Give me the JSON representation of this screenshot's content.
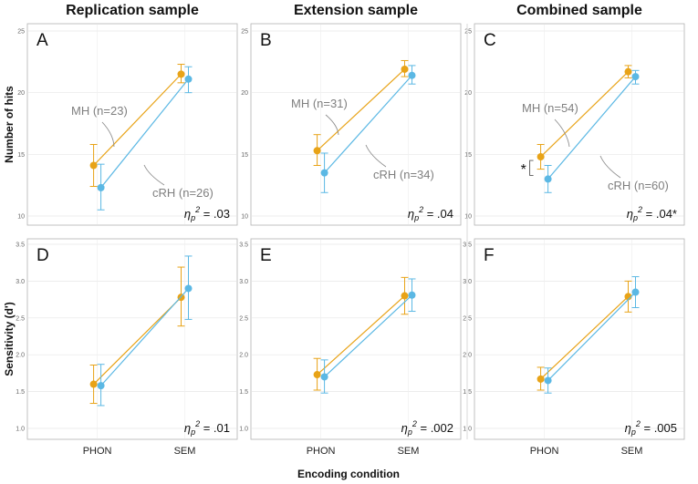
{
  "figure": {
    "column_titles": [
      "Replication sample",
      "Extension sample",
      "Combined sample"
    ],
    "row_ylabels": [
      "Number of hits",
      "Sensitivity (d')"
    ],
    "xlabel": "Encoding condition",
    "colors": {
      "MH": "#E8A317",
      "cRH": "#5BB8E4",
      "grid": "#e6e6e6",
      "frame": "#b3b3b3"
    }
  },
  "chart_data": [
    {
      "type": "line",
      "panel": "A",
      "row": 0,
      "col": 0,
      "categories": [
        "PHON",
        "SEM"
      ],
      "ylim": [
        10,
        25
      ],
      "yticks": [
        10,
        15,
        20,
        25
      ],
      "series": [
        {
          "name": "MH",
          "label": "MH (n=23)",
          "values": [
            14.1,
            21.5
          ],
          "ci": [
            [
              12.4,
              15.8
            ],
            [
              20.8,
              22.3
            ]
          ]
        },
        {
          "name": "cRH",
          "label": "cRH (n=26)",
          "values": [
            12.3,
            21.1
          ],
          "ci": [
            [
              10.5,
              14.2
            ],
            [
              20.0,
              22.1
            ]
          ]
        }
      ],
      "eta_prefix": "η",
      "eta_sub": "p",
      "eta_sup": "2",
      "eta_value": " = .03"
    },
    {
      "type": "line",
      "panel": "B",
      "row": 0,
      "col": 1,
      "categories": [
        "PHON",
        "SEM"
      ],
      "ylim": [
        10,
        25
      ],
      "yticks": [
        10,
        15,
        20,
        25
      ],
      "series": [
        {
          "name": "MH",
          "label": "MH (n=31)",
          "values": [
            15.3,
            21.9
          ],
          "ci": [
            [
              14.1,
              16.6
            ],
            [
              21.3,
              22.6
            ]
          ]
        },
        {
          "name": "cRH",
          "label": "cRH (n=34)",
          "values": [
            13.5,
            21.4
          ],
          "ci": [
            [
              11.9,
              15.1
            ],
            [
              20.7,
              22.2
            ]
          ]
        }
      ],
      "eta_prefix": "η",
      "eta_sub": "p",
      "eta_sup": "2",
      "eta_value": " = .04"
    },
    {
      "type": "line",
      "panel": "C",
      "row": 0,
      "col": 2,
      "categories": [
        "PHON",
        "SEM"
      ],
      "ylim": [
        10,
        25
      ],
      "yticks": [
        10,
        15,
        20,
        25
      ],
      "series": [
        {
          "name": "MH",
          "label": "MH (n=54)",
          "values": [
            14.8,
            21.7
          ],
          "ci": [
            [
              13.8,
              15.8
            ],
            [
              21.2,
              22.2
            ]
          ]
        },
        {
          "name": "cRH",
          "label": "cRH (n=60)",
          "values": [
            13.0,
            21.3
          ],
          "ci": [
            [
              11.9,
              14.1
            ],
            [
              20.7,
              21.8
            ]
          ]
        }
      ],
      "eta_prefix": "η",
      "eta_sub": "p",
      "eta_sup": "2",
      "eta_value": " = .04*",
      "annotation": "*"
    },
    {
      "type": "line",
      "panel": "D",
      "row": 1,
      "col": 0,
      "categories": [
        "PHON",
        "SEM"
      ],
      "ylim": [
        1.0,
        3.5
      ],
      "yticks": [
        "1.0",
        "1.5",
        "2.0",
        "2.5",
        "3.0",
        "3.5"
      ],
      "series": [
        {
          "name": "MH",
          "values": [
            1.6,
            2.78
          ],
          "ci": [
            [
              1.34,
              1.86
            ],
            [
              2.39,
              3.19
            ]
          ]
        },
        {
          "name": "cRH",
          "values": [
            1.58,
            2.9
          ],
          "ci": [
            [
              1.31,
              1.87
            ],
            [
              2.48,
              3.34
            ]
          ]
        }
      ],
      "eta_prefix": "η",
      "eta_sub": "p",
      "eta_sup": "2",
      "eta_value": " = .01"
    },
    {
      "type": "line",
      "panel": "E",
      "row": 1,
      "col": 1,
      "categories": [
        "PHON",
        "SEM"
      ],
      "ylim": [
        1.0,
        3.5
      ],
      "yticks": [
        "1.0",
        "1.5",
        "2.0",
        "2.5",
        "3.0",
        "3.5"
      ],
      "series": [
        {
          "name": "MH",
          "values": [
            1.73,
            2.8
          ],
          "ci": [
            [
              1.52,
              1.95
            ],
            [
              2.55,
              3.05
            ]
          ]
        },
        {
          "name": "cRH",
          "values": [
            1.7,
            2.81
          ],
          "ci": [
            [
              1.48,
              1.93
            ],
            [
              2.59,
              3.03
            ]
          ]
        }
      ],
      "eta_prefix": "η",
      "eta_sub": "p",
      "eta_sup": "2",
      "eta_value": " = .002"
    },
    {
      "type": "line",
      "panel": "F",
      "row": 1,
      "col": 2,
      "categories": [
        "PHON",
        "SEM"
      ],
      "ylim": [
        1.0,
        3.5
      ],
      "yticks": [
        "1.0",
        "1.5",
        "2.0",
        "2.5",
        "3.0",
        "3.5"
      ],
      "series": [
        {
          "name": "MH",
          "values": [
            1.67,
            2.79
          ],
          "ci": [
            [
              1.52,
              1.83
            ],
            [
              2.58,
              3.0
            ]
          ]
        },
        {
          "name": "cRH",
          "values": [
            1.65,
            2.85
          ],
          "ci": [
            [
              1.48,
              1.82
            ],
            [
              2.64,
              3.06
            ]
          ]
        }
      ],
      "eta_prefix": "η",
      "eta_sub": "p",
      "eta_sup": "2",
      "eta_value": " = .005"
    }
  ]
}
